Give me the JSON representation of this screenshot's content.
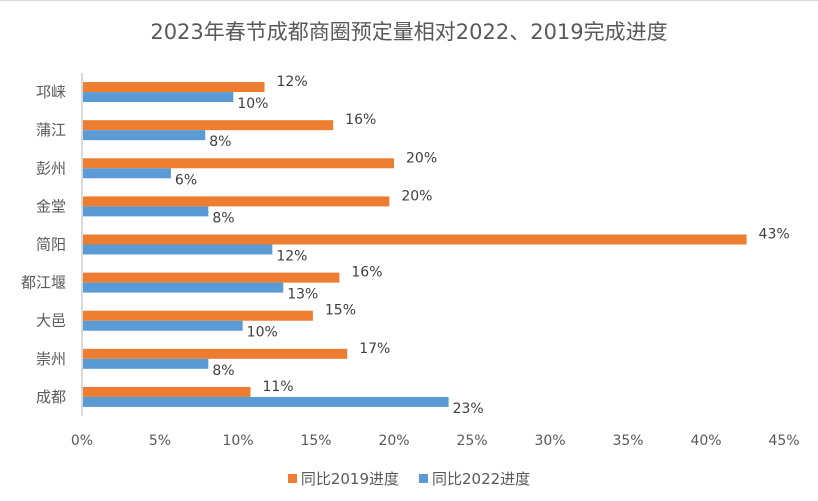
{
  "chart_data": {
    "type": "bar",
    "orientation": "horizontal",
    "title": "2023年春节成都商圈预定量相对2022、2019完成进度",
    "xlabel": "",
    "ylabel": "",
    "xlim": [
      0,
      45
    ],
    "x_ticks": [
      "0%",
      "5%",
      "10%",
      "15%",
      "20%",
      "25%",
      "30%",
      "35%",
      "40%",
      "45%"
    ],
    "x_tick_values": [
      0,
      5,
      10,
      15,
      20,
      25,
      30,
      35,
      40,
      45
    ],
    "grid": false,
    "legend_position": "bottom",
    "categories": [
      "邛崃",
      "蒲江",
      "彭州",
      "金堂",
      "简阳",
      "都江堰",
      "大邑",
      "崇州",
      "成都"
    ],
    "series": [
      {
        "name": "同比2019进度",
        "color": "#ED7D31",
        "values": [
          11.7,
          16.1,
          20.0,
          19.7,
          42.6,
          16.5,
          14.8,
          17.0,
          10.8
        ],
        "labels": [
          "12%",
          "16%",
          "20%",
          "20%",
          "43%",
          "16%",
          "15%",
          "17%",
          "11%"
        ]
      },
      {
        "name": "同比2022进度",
        "color": "#5B9BD5",
        "values": [
          9.7,
          7.9,
          5.7,
          8.1,
          12.2,
          12.9,
          10.3,
          8.1,
          23.5
        ],
        "labels": [
          "10%",
          "8%",
          "6%",
          "8%",
          "12%",
          "13%",
          "10%",
          "8%",
          "23%"
        ]
      }
    ]
  }
}
